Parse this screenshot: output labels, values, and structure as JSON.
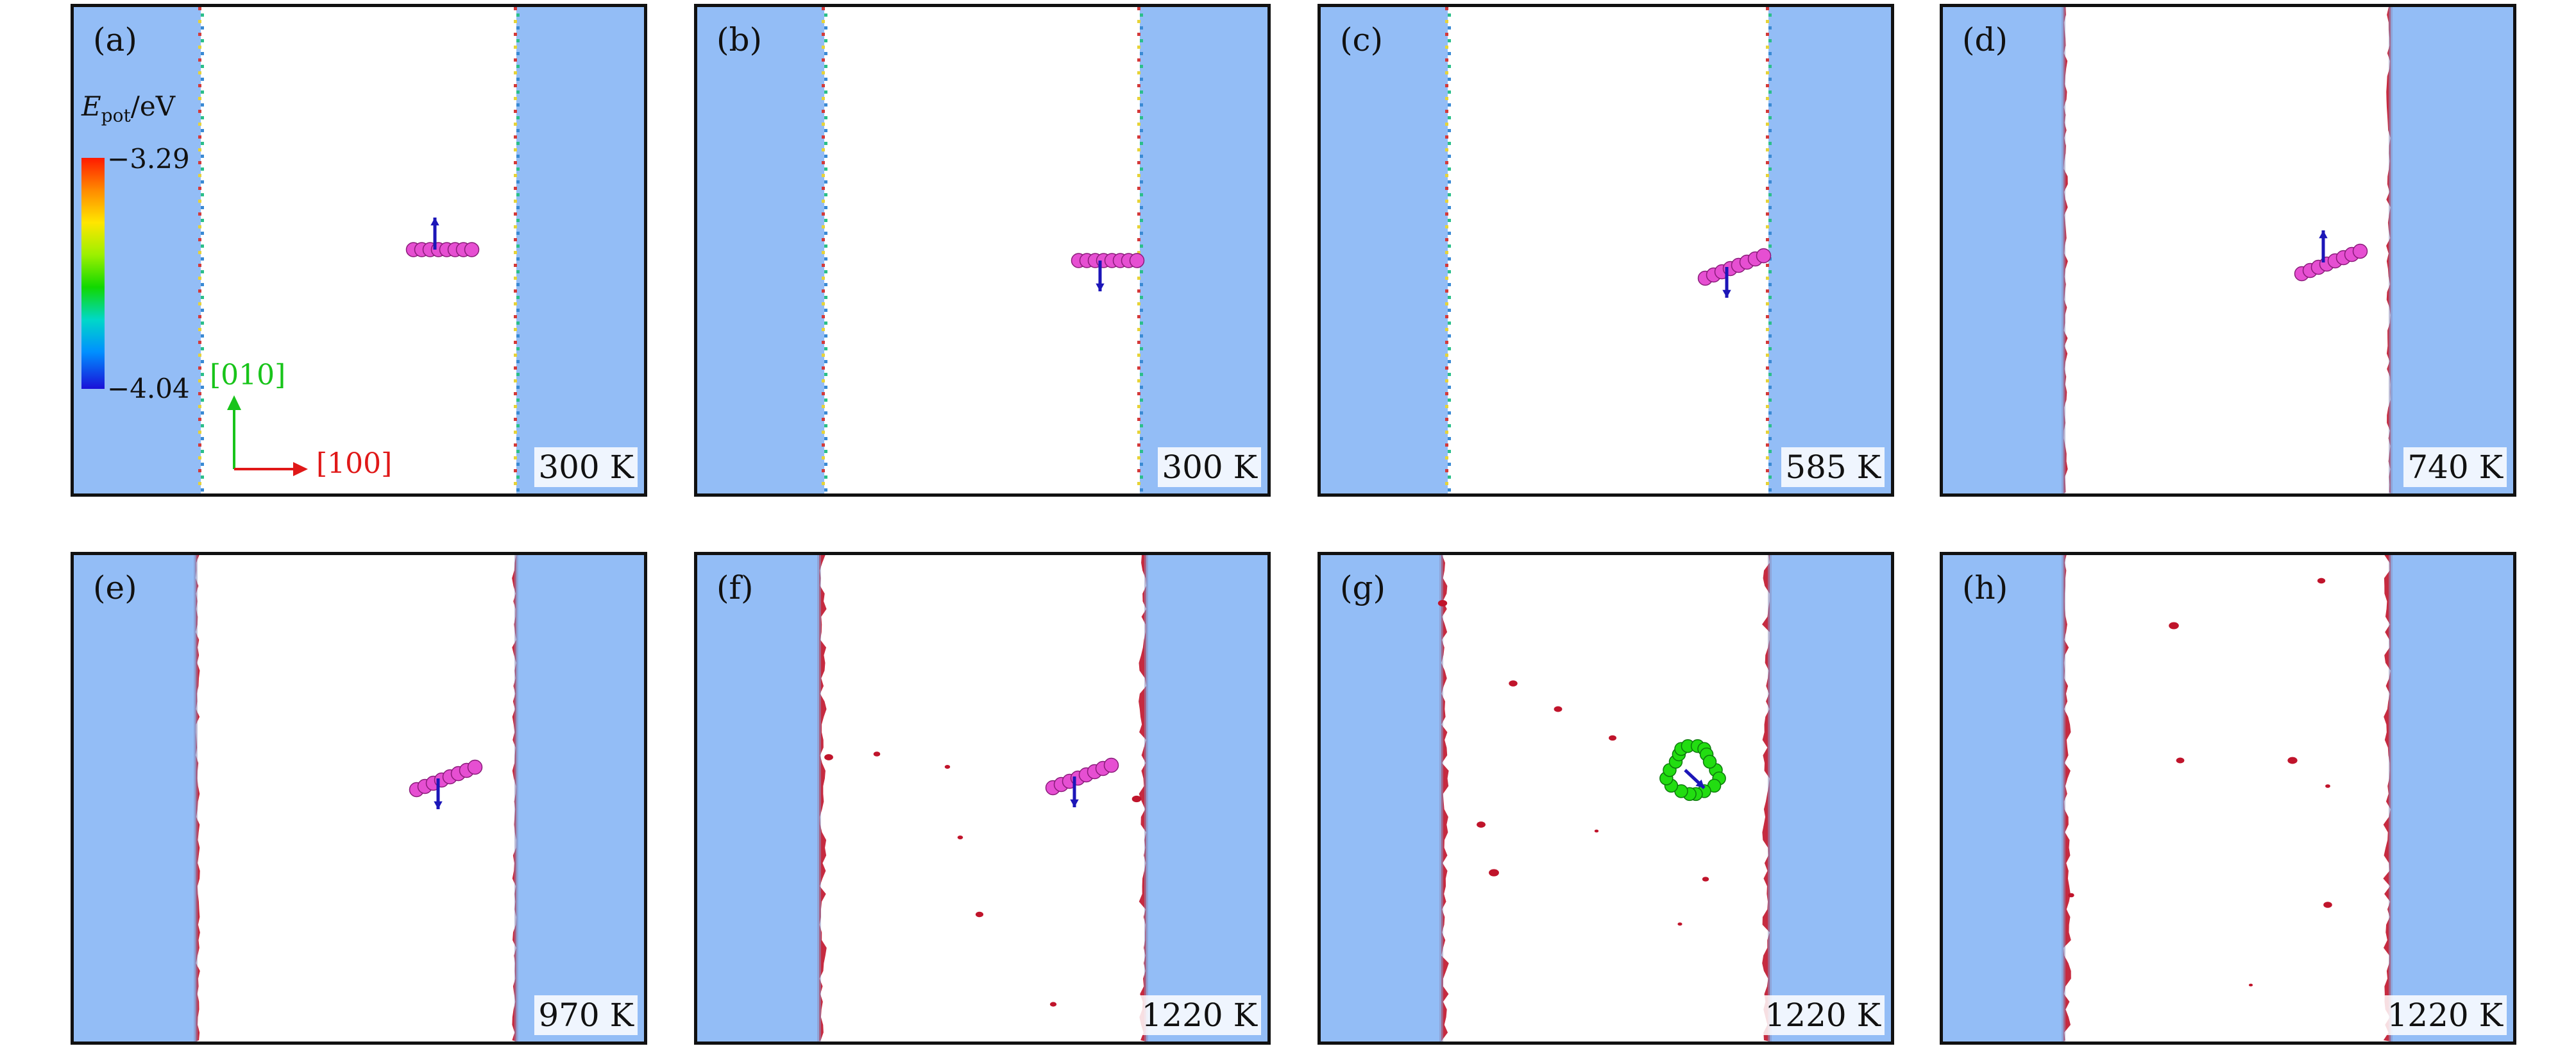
{
  "panels": [
    {
      "label": "(a)",
      "temperature": "300 K",
      "loop_color": "#e64fd2",
      "arrow": "up",
      "style": "dotted"
    },
    {
      "label": "(b)",
      "temperature": "300 K",
      "loop_color": "#e64fd2",
      "arrow": "down",
      "style": "dotted"
    },
    {
      "label": "(c)",
      "temperature": "585 K",
      "loop_color": "#e64fd2",
      "arrow": "down",
      "style": "dotted"
    },
    {
      "label": "(d)",
      "temperature": "740 K",
      "loop_color": "#e64fd2",
      "arrow": "up",
      "style": "rough"
    },
    {
      "label": "(e)",
      "temperature": "970 K",
      "loop_color": "#e64fd2",
      "arrow": "down",
      "style": "rough"
    },
    {
      "label": "(f)",
      "temperature": "1220 K",
      "loop_color": "#e64fd2",
      "arrow": "down",
      "style": "rough"
    },
    {
      "label": "(g)",
      "temperature": "1220 K",
      "loop_color": "#22dd11",
      "arrow": "diag",
      "style": "rough"
    },
    {
      "label": "(h)",
      "temperature": "1220 K",
      "loop_color": "",
      "arrow": "none",
      "style": "rough"
    }
  ],
  "colorbar": {
    "title_main": "E",
    "title_sub": "pot",
    "title_unit": "/eV",
    "max_label": "−3.29",
    "min_label": "−4.04"
  },
  "axes": {
    "y_label": "[010]",
    "x_label": "[100]",
    "y_color": "#18c41a",
    "x_color": "#e01818"
  },
  "colors": {
    "slab": "#93bdf6",
    "defect": "#c0142b",
    "arrow": "#1c16b8"
  }
}
